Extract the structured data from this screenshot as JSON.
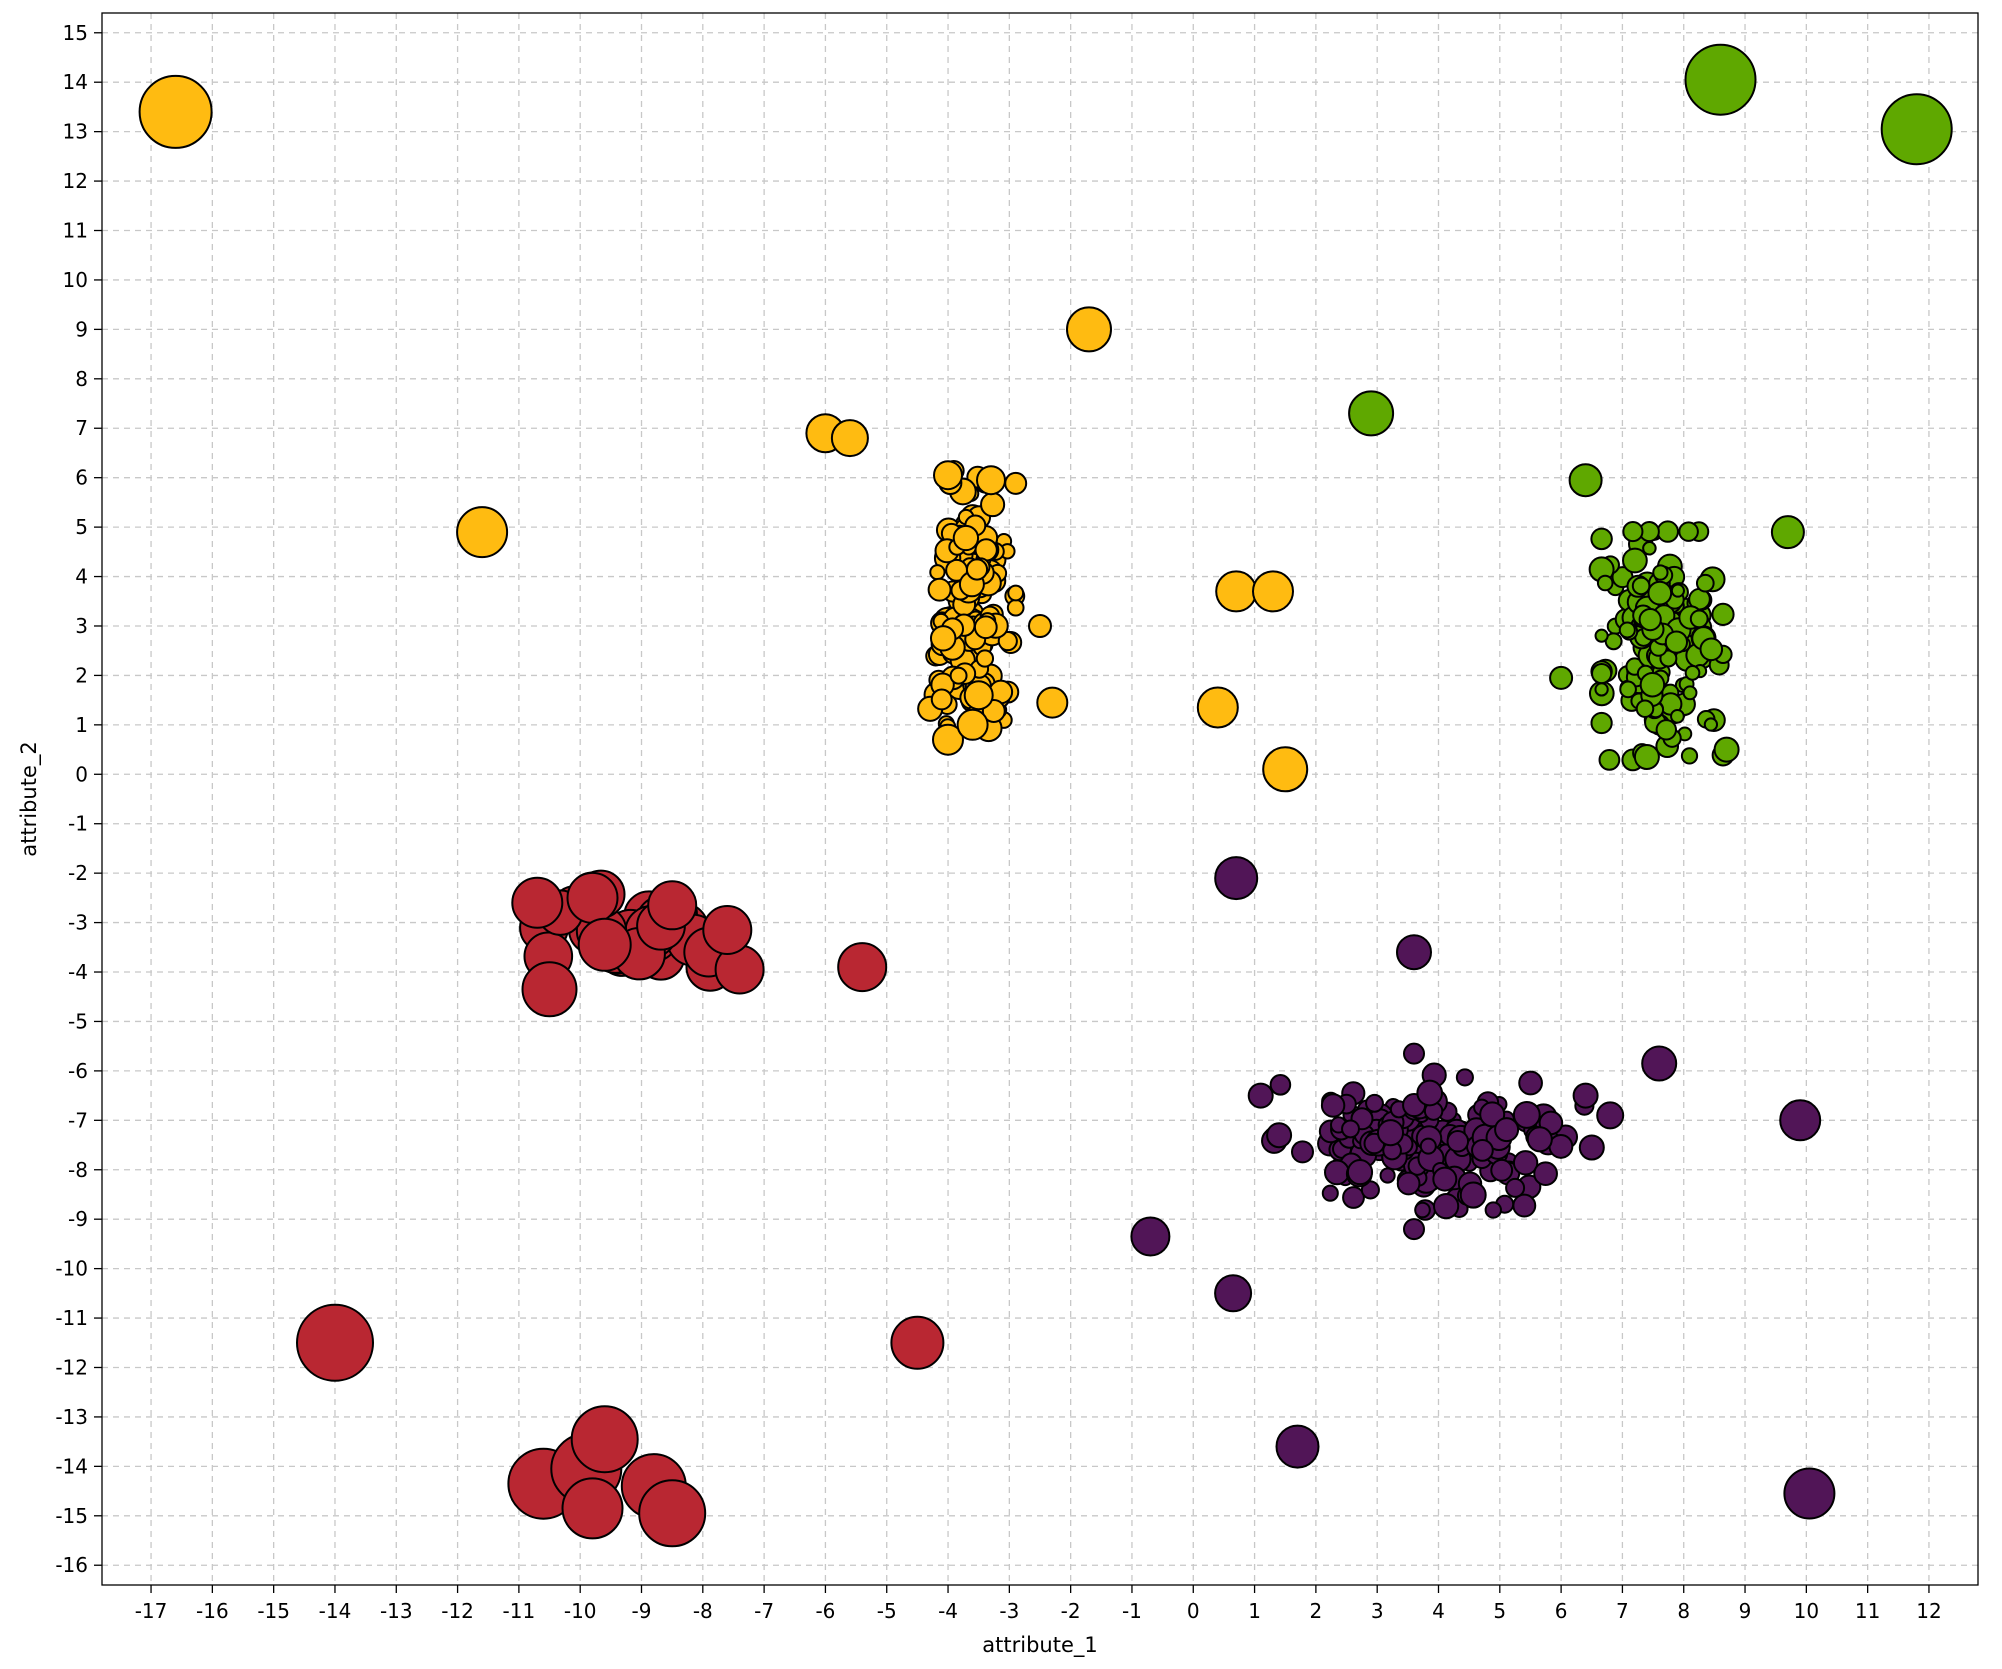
{
  "chart_data": {
    "type": "scatter",
    "title": "",
    "xlabel": "attribute_1",
    "ylabel": "attribute_2",
    "xlim": [
      -17.8,
      12.8
    ],
    "ylim": [
      -16.4,
      15.4
    ],
    "xticks": [
      -17,
      -16,
      -15,
      -14,
      -13,
      -12,
      -11,
      -10,
      -9,
      -8,
      -7,
      -6,
      -5,
      -4,
      -3,
      -2,
      -1,
      0,
      1,
      2,
      3,
      4,
      5,
      6,
      7,
      8,
      9,
      10,
      11,
      12
    ],
    "yticks": [
      -16,
      -15,
      -14,
      -13,
      -12,
      -11,
      -10,
      -9,
      -8,
      -7,
      -6,
      -5,
      -4,
      -3,
      -2,
      -1,
      0,
      1,
      2,
      3,
      4,
      5,
      6,
      7,
      8,
      9,
      10,
      11,
      12,
      13,
      14,
      15
    ],
    "grid": true,
    "legend": "none",
    "series": [
      {
        "color": "#ffbb11",
        "points": [
          {
            "x": -16.6,
            "y": 13.4,
            "size": 36
          },
          {
            "x": -11.6,
            "y": 4.9,
            "size": 25
          },
          {
            "x": -6.0,
            "y": 6.9,
            "size": 19
          },
          {
            "x": -5.6,
            "y": 6.8,
            "size": 18
          },
          {
            "x": -1.7,
            "y": 9.0,
            "size": 22
          },
          {
            "x": -2.3,
            "y": 1.45,
            "size": 15
          },
          {
            "x": -2.5,
            "y": 3.0,
            "size": 11
          },
          {
            "x": 0.7,
            "y": 3.7,
            "size": 20
          },
          {
            "x": 1.3,
            "y": 3.7,
            "size": 20
          },
          {
            "x": 0.4,
            "y": 1.35,
            "size": 20
          },
          {
            "x": 1.5,
            "y": 0.1,
            "size": 22
          },
          {
            "x": -4.0,
            "y": 0.7,
            "size": 15
          },
          {
            "x": -3.6,
            "y": 1.0,
            "size": 15
          },
          {
            "x": -3.5,
            "y": 1.6,
            "size": 14
          },
          {
            "x": -3.3,
            "y": 5.95,
            "size": 14
          },
          {
            "x": -4.0,
            "y": 6.05,
            "size": 14
          }
        ],
        "clusters": [
          {
            "cx": -3.6,
            "cy": 3.5,
            "sx": 0.32,
            "sy": 1.2,
            "n": 160,
            "size_min": 7,
            "size_max": 13,
            "seed": 11
          }
        ]
      },
      {
        "color": "#5fa800",
        "points": [
          {
            "x": 8.6,
            "y": 14.05,
            "size": 35
          },
          {
            "x": 11.8,
            "y": 13.05,
            "size": 35
          },
          {
            "x": 2.9,
            "y": 7.3,
            "size": 22
          },
          {
            "x": 6.4,
            "y": 5.95,
            "size": 16
          },
          {
            "x": 9.7,
            "y": 4.9,
            "size": 16
          },
          {
            "x": 6.0,
            "y": 1.95,
            "size": 11
          },
          {
            "x": 7.4,
            "y": 0.35,
            "size": 12
          },
          {
            "x": 8.7,
            "y": 0.5,
            "size": 12
          }
        ],
        "clusters": [
          {
            "cx": 7.65,
            "cy": 2.6,
            "sx": 0.45,
            "sy": 1.05,
            "n": 170,
            "size_min": 6,
            "size_max": 12,
            "seed": 23
          }
        ]
      },
      {
        "color": "#b92732",
        "points": [
          {
            "x": -14.0,
            "y": -11.5,
            "size": 38
          },
          {
            "x": -4.5,
            "y": -11.5,
            "size": 26
          },
          {
            "x": -5.4,
            "y": -3.9,
            "size": 24
          },
          {
            "x": -10.7,
            "y": -2.6,
            "size": 25
          },
          {
            "x": -9.8,
            "y": -2.5,
            "size": 25
          },
          {
            "x": -10.5,
            "y": -4.35,
            "size": 27
          },
          {
            "x": -7.4,
            "y": -3.95,
            "size": 24
          },
          {
            "x": -7.6,
            "y": -3.15,
            "size": 24
          },
          {
            "x": -8.5,
            "y": -2.65,
            "size": 24
          },
          {
            "x": -9.6,
            "y": -3.45,
            "size": 26
          },
          {
            "x": -10.6,
            "y": -14.35,
            "size": 35
          },
          {
            "x": -9.9,
            "y": -14.05,
            "size": 35
          },
          {
            "x": -9.6,
            "y": -13.45,
            "size": 33
          },
          {
            "x": -8.8,
            "y": -14.4,
            "size": 32
          },
          {
            "x": -8.5,
            "y": -14.95,
            "size": 33
          },
          {
            "x": -9.8,
            "y": -14.85,
            "size": 30
          }
        ],
        "clusters": [
          {
            "cx": -9.0,
            "cy": -3.35,
            "sx": 0.75,
            "sy": 0.42,
            "n": 28,
            "size_min": 22,
            "size_max": 26,
            "seed": 37
          }
        ]
      },
      {
        "color": "#511557",
        "points": [
          {
            "x": 0.7,
            "y": -2.1,
            "size": 21
          },
          {
            "x": 3.6,
            "y": -3.6,
            "size": 17
          },
          {
            "x": 7.6,
            "y": -5.85,
            "size": 17
          },
          {
            "x": 9.9,
            "y": -7.0,
            "size": 20
          },
          {
            "x": -0.7,
            "y": -9.35,
            "size": 19
          },
          {
            "x": 0.65,
            "y": -10.5,
            "size": 18
          },
          {
            "x": 1.7,
            "y": -13.6,
            "size": 21
          },
          {
            "x": 10.05,
            "y": -14.55,
            "size": 25
          },
          {
            "x": 6.8,
            "y": -6.9,
            "size": 13
          },
          {
            "x": 6.5,
            "y": -7.55,
            "size": 12
          },
          {
            "x": 6.4,
            "y": -6.5,
            "size": 12
          },
          {
            "x": 1.1,
            "y": -6.5,
            "size": 12
          },
          {
            "x": 1.4,
            "y": -7.3,
            "size": 12
          },
          {
            "x": 3.6,
            "y": -5.65,
            "size": 10
          },
          {
            "x": 3.6,
            "y": -9.2,
            "size": 10
          }
        ],
        "clusters": [
          {
            "cx": 3.85,
            "cy": -7.45,
            "sx": 1.15,
            "sy": 0.62,
            "n": 190,
            "size_min": 7,
            "size_max": 13,
            "seed": 53
          }
        ]
      }
    ]
  }
}
